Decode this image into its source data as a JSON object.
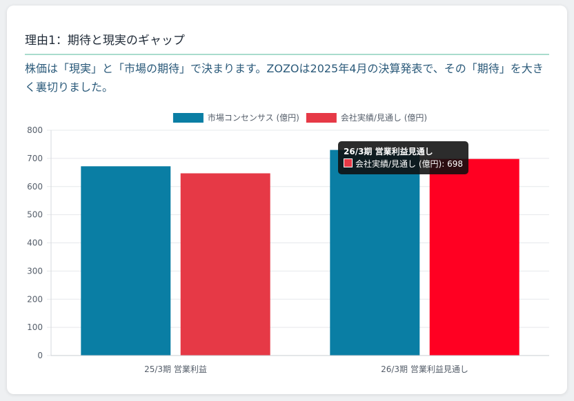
{
  "card": {
    "title": "理由1：期待と現実のギャップ",
    "lead": "株価は「現実」と「市場の期待」で決まります。ZOZOは2025年4月の決算発表で、その「期待」を大きく裏切りました。"
  },
  "chart_data": {
    "type": "bar",
    "categories": [
      "25/3期 営業利益",
      "26/3期 営業利益見通し"
    ],
    "series": [
      {
        "name": "市場コンセンサス (億円)",
        "color": "#0a7ea4",
        "values": [
          672,
          730
        ]
      },
      {
        "name": "会社実績/見通し (億円)",
        "color": "#e63946",
        "values": [
          647,
          698
        ]
      }
    ],
    "ylim": [
      0,
      800
    ],
    "yticks": [
      0,
      100,
      200,
      300,
      400,
      500,
      600,
      700,
      800
    ],
    "grid": true,
    "legend": "top-center",
    "highlight_color": "#ff0022",
    "tooltip": {
      "title": "26/3期 営業利益見通し",
      "series_label": "会社実績/見通し (億円)",
      "value": "698",
      "category_index": 1,
      "series_index": 1
    }
  }
}
